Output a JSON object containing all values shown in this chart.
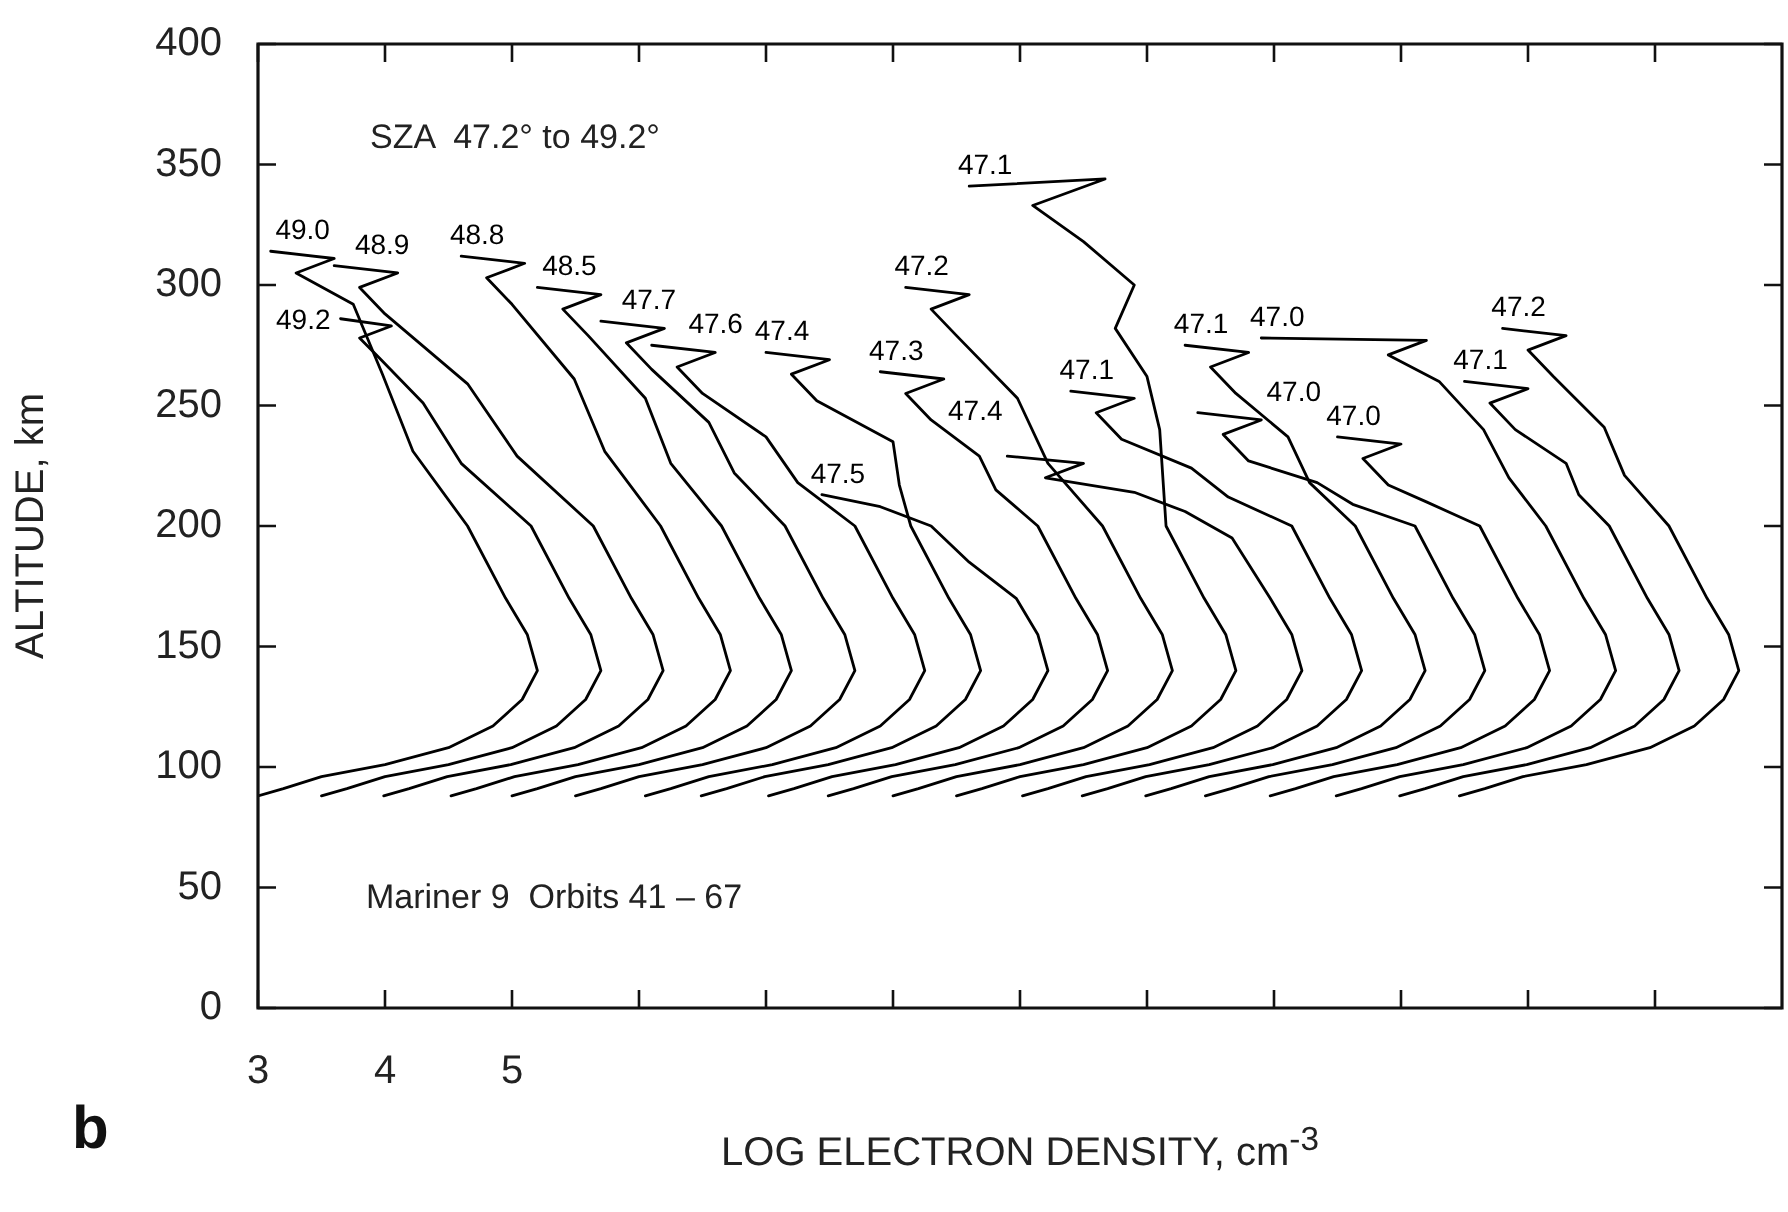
{
  "chart_data": {
    "type": "line",
    "xlabel": "LOG ELECTRON DENSITY, cm$^{-3}$",
    "ylabel": "ALTITUDE, km",
    "annotations": [
      "SZA  47.2° to 49.2°",
      "Mariner 9  Orbits 41 – 67",
      "b"
    ],
    "xlim": [
      3,
      15
    ],
    "ylim": [
      0,
      400
    ],
    "xticks": [
      3,
      4,
      5,
      {
        "value": 6,
        "label": null
      },
      {
        "value": 7,
        "label": null
      },
      {
        "value": 8,
        "label": null
      },
      {
        "value": 9,
        "label": null
      },
      {
        "value": 10,
        "label": null
      },
      {
        "value": 11,
        "label": null
      },
      {
        "value": 12,
        "label": null
      },
      {
        "value": 13,
        "label": null
      },
      {
        "value": 14,
        "label": null
      }
    ],
    "yticks": [
      0,
      50,
      100,
      150,
      200,
      250,
      300,
      350,
      400
    ],
    "grid": false,
    "series": [
      {
        "name": "49.0",
        "color": "#000000",
        "x": [
          3.1,
          3.6,
          3.3,
          3.75,
          3.98,
          4.22,
          4.65,
          4.95,
          5.12,
          5.2,
          5.08,
          4.85,
          4.5,
          4.0,
          3.5,
          3.2,
          3.0
        ],
        "values": [
          314,
          311,
          305,
          292,
          263,
          231,
          200,
          170,
          155,
          140,
          128,
          117,
          108,
          101,
          96,
          91,
          88
        ]
      },
      {
        "name": "49.2",
        "color": "#000000",
        "x": [
          3.65,
          4.05,
          3.8,
          3.95,
          4.3,
          4.6,
          5.15,
          5.45,
          5.62,
          5.7,
          5.58,
          5.35,
          5.0,
          4.5,
          4.0,
          3.7,
          3.5
        ],
        "values": [
          286,
          283,
          278,
          270,
          251,
          226,
          200,
          170,
          155,
          140,
          128,
          117,
          108,
          101,
          96,
          91,
          88
        ]
      },
      {
        "name": "48.9",
        "color": "#000000",
        "x": [
          3.6,
          4.1,
          3.8,
          4.0,
          4.65,
          5.04,
          5.64,
          5.94,
          6.11,
          6.19,
          6.07,
          5.84,
          5.49,
          4.99,
          4.49,
          4.19,
          3.99
        ],
        "values": [
          308,
          305,
          299,
          288,
          259,
          229,
          200,
          170,
          155,
          140,
          128,
          117,
          108,
          101,
          96,
          91,
          88
        ]
      },
      {
        "name": "48.8",
        "color": "#000000",
        "x": [
          4.6,
          5.1,
          4.8,
          5.0,
          5.49,
          5.73,
          6.17,
          6.47,
          6.64,
          6.72,
          6.6,
          6.37,
          6.02,
          5.52,
          5.02,
          4.72,
          4.52
        ],
        "values": [
          312,
          309,
          303,
          292,
          261,
          231,
          200,
          170,
          155,
          140,
          128,
          117,
          108,
          101,
          96,
          91,
          88
        ]
      },
      {
        "name": "48.5",
        "color": "#000000",
        "x": [
          5.2,
          5.7,
          5.4,
          5.6,
          6.05,
          6.25,
          6.65,
          6.95,
          7.12,
          7.2,
          7.08,
          6.85,
          6.5,
          6.0,
          5.5,
          5.2,
          5.0
        ],
        "values": [
          299,
          296,
          290,
          279,
          253,
          226,
          200,
          170,
          155,
          140,
          128,
          117,
          108,
          101,
          96,
          91,
          88
        ]
      },
      {
        "name": "47.7",
        "color": "#000000",
        "x": [
          5.7,
          6.2,
          5.9,
          6.1,
          6.55,
          6.75,
          7.15,
          7.45,
          7.62,
          7.7,
          7.58,
          7.35,
          7.0,
          6.5,
          6.0,
          5.7,
          5.5
        ],
        "values": [
          285,
          282,
          276,
          265,
          243,
          222,
          200,
          170,
          155,
          140,
          128,
          117,
          108,
          101,
          96,
          91,
          88
        ]
      },
      {
        "name": "47.6",
        "color": "#000000",
        "x": [
          6.1,
          6.6,
          6.3,
          6.5,
          7.0,
          7.25,
          7.7,
          8.0,
          8.17,
          8.25,
          8.13,
          7.9,
          7.55,
          7.05,
          6.55,
          6.25,
          6.05
        ],
        "values": [
          275,
          272,
          266,
          255,
          237,
          218,
          200,
          170,
          155,
          140,
          128,
          117,
          108,
          101,
          96,
          91,
          88
        ]
      },
      {
        "name": "47.4",
        "color": "#000000",
        "x": [
          7.0,
          7.5,
          7.2,
          7.4,
          8.0,
          8.05,
          8.14,
          8.44,
          8.61,
          8.69,
          8.57,
          8.34,
          7.99,
          7.49,
          6.99,
          6.69,
          6.49
        ],
        "values": [
          272,
          269,
          263,
          252,
          235,
          217,
          200,
          170,
          155,
          140,
          128,
          117,
          108,
          101,
          96,
          91,
          88
        ]
      },
      {
        "name": "47.5",
        "color": "#000000",
        "x": [
          7.44,
          7.9,
          8.3,
          8.6,
          8.97,
          9.14,
          9.22,
          9.1,
          8.87,
          8.52,
          8.02,
          7.52,
          7.22,
          7.02
        ],
        "values": [
          213,
          208,
          200,
          185,
          170,
          155,
          140,
          128,
          117,
          108,
          101,
          96,
          91,
          88
        ]
      },
      {
        "name": "47.3",
        "color": "#000000",
        "x": [
          7.9,
          8.4,
          8.1,
          8.3,
          8.68,
          8.81,
          9.14,
          9.44,
          9.61,
          9.69,
          9.57,
          9.34,
          8.99,
          8.49,
          7.99,
          7.69,
          7.49
        ],
        "values": [
          264,
          261,
          255,
          244,
          229,
          215,
          200,
          170,
          155,
          140,
          128,
          117,
          108,
          101,
          96,
          91,
          88
        ]
      },
      {
        "name": "47.2",
        "color": "#000000",
        "x": [
          8.1,
          8.6,
          8.3,
          8.5,
          8.98,
          9.22,
          9.65,
          9.95,
          10.12,
          10.2,
          10.08,
          9.85,
          9.5,
          9.0,
          8.5,
          8.2,
          8.0
        ],
        "values": [
          299,
          296,
          290,
          279,
          253,
          226,
          200,
          170,
          155,
          140,
          128,
          117,
          108,
          101,
          96,
          91,
          88
        ]
      },
      {
        "name": "47.1",
        "color": "#000000",
        "x": [
          8.6,
          9.67,
          9.1,
          9.5,
          9.9,
          9.75,
          10.0,
          10.1,
          10.15,
          10.45,
          10.62,
          10.7,
          10.58,
          10.35,
          10.0,
          9.5,
          9.0,
          8.7,
          8.5
        ],
        "values": [
          341,
          344,
          333,
          318,
          300,
          282,
          262,
          240,
          200,
          170,
          155,
          140,
          128,
          117,
          108,
          101,
          96,
          91,
          88
        ]
      },
      {
        "name": "47.4",
        "color": "#000000",
        "x": [
          8.9,
          9.5,
          9.2,
          9.9,
          10.3,
          10.67,
          10.97,
          11.14,
          11.22,
          11.1,
          10.87,
          10.52,
          10.02,
          9.52,
          9.22,
          9.02
        ],
        "values": [
          229,
          226,
          220,
          214,
          206,
          195,
          170,
          155,
          140,
          128,
          117,
          108,
          101,
          96,
          91,
          88
        ]
      },
      {
        "name": "47.1",
        "color": "#000000",
        "x": [
          9.4,
          9.9,
          9.6,
          9.8,
          10.35,
          10.64,
          11.14,
          11.44,
          11.61,
          11.69,
          11.57,
          11.34,
          10.99,
          10.49,
          9.99,
          9.69,
          9.49
        ],
        "values": [
          256,
          253,
          247,
          236,
          224,
          212,
          200,
          170,
          155,
          140,
          128,
          117,
          108,
          101,
          96,
          91,
          88
        ]
      },
      {
        "name": "47.1",
        "color": "#000000",
        "x": [
          10.3,
          10.8,
          10.5,
          10.7,
          11.11,
          11.28,
          11.64,
          11.94,
          12.11,
          12.19,
          12.07,
          11.84,
          11.49,
          10.99,
          10.49,
          10.19,
          9.99
        ],
        "values": [
          275,
          272,
          266,
          255,
          237,
          218,
          200,
          170,
          155,
          140,
          128,
          117,
          108,
          101,
          96,
          91,
          88
        ]
      },
      {
        "name": "47.0",
        "color": "#000000",
        "x": [
          10.4,
          10.9,
          10.6,
          10.8,
          11.34,
          11.62,
          12.11,
          12.41,
          12.58,
          12.66,
          12.54,
          12.31,
          11.96,
          11.46,
          10.96,
          10.66,
          10.46
        ],
        "values": [
          247,
          244,
          238,
          227,
          218,
          209,
          200,
          170,
          155,
          140,
          128,
          117,
          108,
          101,
          96,
          91,
          88
        ]
      },
      {
        "name": "47.0",
        "color": "#000000",
        "x": [
          11.5,
          12.0,
          11.7,
          11.9,
          12.2,
          12.62,
          12.92,
          13.09,
          13.17,
          13.05,
          12.82,
          12.47,
          11.97,
          11.47,
          11.17,
          10.97
        ],
        "values": [
          237,
          234,
          228,
          217,
          210,
          200,
          170,
          155,
          140,
          128,
          117,
          108,
          101,
          96,
          91,
          88
        ]
      },
      {
        "name": "47.0",
        "color": "#000000",
        "x": [
          10.9,
          12.2,
          11.9,
          12.3,
          12.65,
          12.85,
          13.14,
          13.44,
          13.61,
          13.69,
          13.57,
          13.34,
          12.99,
          12.49,
          11.99,
          11.69,
          11.49
        ],
        "values": [
          278,
          277,
          271,
          260,
          240,
          220,
          200,
          170,
          155,
          140,
          128,
          117,
          108,
          101,
          96,
          91,
          88
        ]
      },
      {
        "name": "47.1",
        "color": "#000000",
        "x": [
          12.5,
          13.0,
          12.7,
          12.9,
          13.3,
          13.4,
          13.64,
          13.94,
          14.11,
          14.19,
          14.07,
          13.84,
          13.49,
          12.99,
          12.49,
          12.19,
          11.99
        ],
        "values": [
          260,
          257,
          251,
          240,
          226,
          213,
          200,
          170,
          155,
          140,
          128,
          117,
          108,
          101,
          96,
          91,
          88
        ]
      },
      {
        "name": "47.2",
        "color": "#000000",
        "x": [
          12.8,
          13.3,
          13.0,
          13.2,
          13.6,
          13.76,
          14.11,
          14.41,
          14.58,
          14.66,
          14.54,
          14.31,
          13.96,
          13.46,
          12.96,
          12.66,
          12.46
        ],
        "values": [
          282,
          279,
          273,
          262,
          241,
          221,
          200,
          170,
          155,
          140,
          128,
          117,
          108,
          101,
          96,
          91,
          88
        ]
      }
    ]
  }
}
